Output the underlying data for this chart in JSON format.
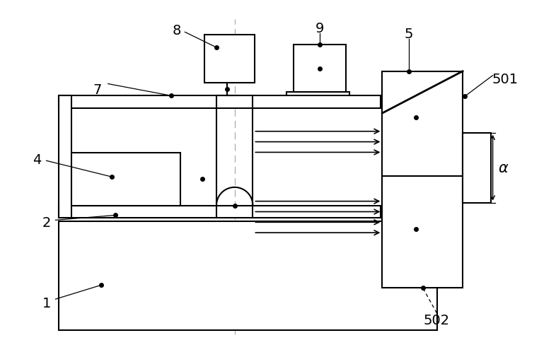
{
  "bg_color": "#ffffff",
  "line_color": "#000000",
  "fig_width": 7.86,
  "fig_height": 5.06
}
